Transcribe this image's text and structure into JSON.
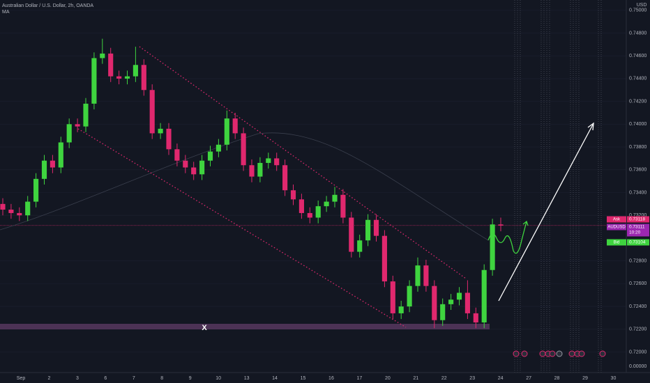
{
  "chart_data": {
    "type": "candlestick",
    "title": "Australian Dollar / U.S. Dollar, 2h, OANDA",
    "indicator": "MA",
    "currency": "USD",
    "annotation": "X",
    "scale_zero_label": "0.00000",
    "up_color": "#3fd43f",
    "down_color": "#e0286e",
    "categories": [
      "Sep",
      "2",
      "3",
      "6",
      "7",
      "8",
      "9",
      "10",
      "13",
      "14",
      "15",
      "16",
      "17",
      "20",
      "21",
      "22",
      "23",
      "24",
      "27",
      "28",
      "29",
      "30"
    ],
    "open": [
      0.733,
      0.7325,
      0.7322,
      0.732,
      0.7332,
      0.7352,
      0.7368,
      0.7362,
      0.7384,
      0.74,
      0.7398,
      0.7418,
      0.7458,
      0.7462,
      0.7442,
      0.744,
      0.7442,
      0.7452,
      0.743,
      0.7392,
      0.7396,
      0.7378,
      0.7368,
      0.7362,
      0.7356,
      0.7368,
      0.7376,
      0.7382,
      0.7405,
      0.7392,
      0.7364,
      0.7354,
      0.7366,
      0.737,
      0.7364,
      0.7342,
      0.7334,
      0.7322,
      0.7318,
      0.7328,
      0.7332,
      0.7338,
      0.7318,
      0.7288,
      0.7298,
      0.7316,
      0.7302,
      0.7262,
      0.7234,
      0.724,
      0.7258,
      0.7276,
      0.7258,
      0.7228,
      0.7242,
      0.7246,
      0.7252,
      0.7234,
      0.7226,
      0.7272,
      0.7312
    ],
    "high": [
      0.7335,
      0.733,
      0.7327,
      0.7337,
      0.7357,
      0.7373,
      0.7373,
      0.7389,
      0.7405,
      0.7405,
      0.7423,
      0.7463,
      0.7475,
      0.7467,
      0.7447,
      0.7447,
      0.7468,
      0.7457,
      0.7435,
      0.7401,
      0.7401,
      0.7383,
      0.7373,
      0.7367,
      0.7373,
      0.7381,
      0.7387,
      0.7412,
      0.741,
      0.7397,
      0.7369,
      0.7371,
      0.7375,
      0.7375,
      0.7369,
      0.7347,
      0.7339,
      0.7327,
      0.7333,
      0.7337,
      0.7345,
      0.7343,
      0.7323,
      0.7303,
      0.7321,
      0.7321,
      0.7307,
      0.7267,
      0.7245,
      0.7263,
      0.7283,
      0.7281,
      0.7263,
      0.7247,
      0.7251,
      0.7257,
      0.7263,
      0.7239,
      0.7277,
      0.7317,
      0.7318
    ],
    "low": [
      0.732,
      0.7317,
      0.7315,
      0.7315,
      0.7327,
      0.7347,
      0.7357,
      0.7357,
      0.7379,
      0.7393,
      0.7393,
      0.7413,
      0.7453,
      0.7437,
      0.7435,
      0.7435,
      0.7437,
      0.7425,
      0.7387,
      0.7387,
      0.7373,
      0.7363,
      0.7357,
      0.7351,
      0.7351,
      0.7363,
      0.7371,
      0.7377,
      0.7387,
      0.7359,
      0.7349,
      0.7349,
      0.7361,
      0.7359,
      0.7337,
      0.7329,
      0.7317,
      0.7313,
      0.7313,
      0.7323,
      0.7327,
      0.7313,
      0.7283,
      0.7283,
      0.7293,
      0.7297,
      0.7257,
      0.7229,
      0.7229,
      0.7235,
      0.7253,
      0.7253,
      0.7221,
      0.7223,
      0.7237,
      0.7241,
      0.7229,
      0.7221,
      0.7221,
      0.7267,
      0.7306
    ],
    "close": [
      0.7325,
      0.7322,
      0.732,
      0.7332,
      0.7352,
      0.7368,
      0.7362,
      0.7384,
      0.74,
      0.7398,
      0.7418,
      0.7458,
      0.7462,
      0.7442,
      0.744,
      0.7442,
      0.7452,
      0.743,
      0.7392,
      0.7396,
      0.7378,
      0.7368,
      0.7362,
      0.7356,
      0.7368,
      0.7376,
      0.7382,
      0.7405,
      0.7392,
      0.7364,
      0.7354,
      0.7366,
      0.737,
      0.7364,
      0.7342,
      0.7334,
      0.7322,
      0.7318,
      0.7328,
      0.7332,
      0.7338,
      0.7318,
      0.7288,
      0.7298,
      0.7316,
      0.7302,
      0.7262,
      0.7234,
      0.724,
      0.7258,
      0.7276,
      0.7258,
      0.7228,
      0.7242,
      0.7246,
      0.7252,
      0.7234,
      0.7226,
      0.7272,
      0.7312,
      0.7311
    ],
    "ylim": [
      0.7182,
      0.7509
    ],
    "yticks": [
      {
        "value": 0.75,
        "label": "0.75000"
      },
      {
        "value": 0.748,
        "label": "0.74800"
      },
      {
        "value": 0.746,
        "label": "0.74600"
      },
      {
        "value": 0.744,
        "label": "0.74400"
      },
      {
        "value": 0.742,
        "label": "0.74200"
      },
      {
        "value": 0.74,
        "label": "0.74000"
      },
      {
        "value": 0.738,
        "label": "0.73800"
      },
      {
        "value": 0.736,
        "label": "0.73600"
      },
      {
        "value": 0.734,
        "label": "0.73400"
      },
      {
        "value": 0.732,
        "label": "0.73200"
      },
      {
        "value": 0.728,
        "label": "0.72800"
      },
      {
        "value": 0.726,
        "label": "0.72600"
      },
      {
        "value": 0.724,
        "label": "0.72400"
      },
      {
        "value": 0.722,
        "label": "0.72200"
      },
      {
        "value": 0.72,
        "label": "0.72000"
      }
    ],
    "price_labels": [
      {
        "name": "Ask",
        "value": 0.73118,
        "color": "#e0286e"
      },
      {
        "name": "AUDUSD",
        "value": 0.73111,
        "color": "#9c27b0",
        "countdown": "10:20"
      },
      {
        "name": "Bid",
        "value": 0.73104,
        "color": "#3fd43f"
      }
    ]
  }
}
